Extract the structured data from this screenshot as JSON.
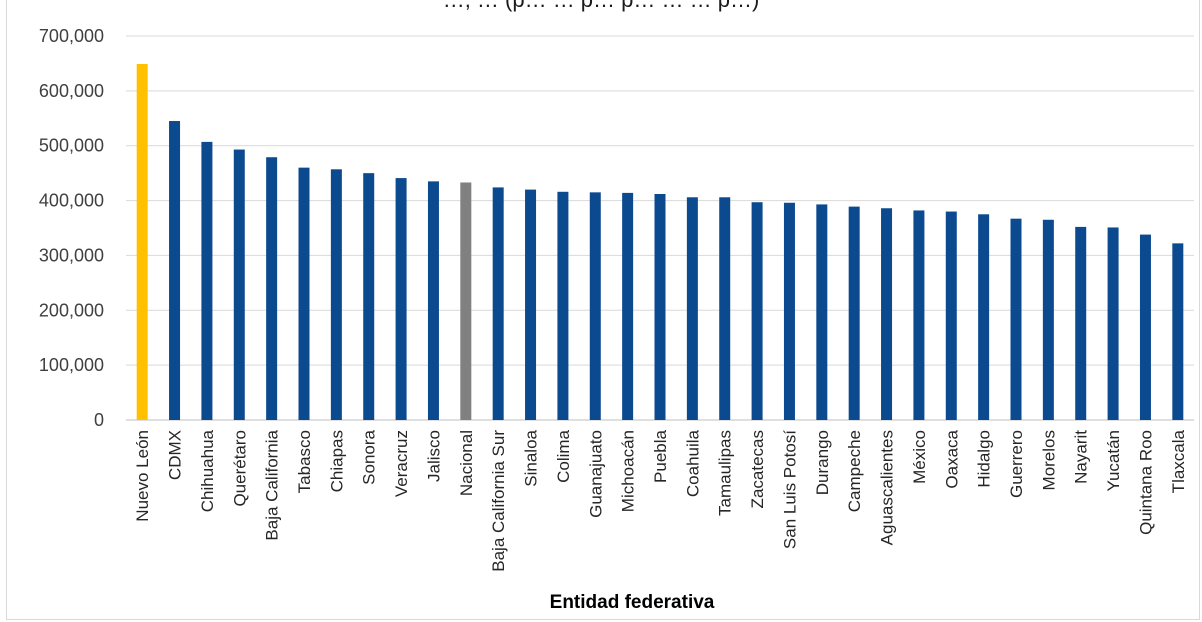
{
  "chart_data": {
    "type": "bar",
    "title": "…, … (p… … p… p… … … p…)",
    "xlabel": "Entidad federativa",
    "ylabel": "",
    "ylim": [
      0,
      700000
    ],
    "yticks": [
      "0",
      "100,000",
      "200,000",
      "300,000",
      "400,000",
      "500,000",
      "600,000",
      "700,000"
    ],
    "grid": true,
    "legend": "none",
    "colors": {
      "default": "#0b4a8f",
      "highlight": "#ffc000",
      "national": "#808080",
      "grid": "#d9d9d9",
      "axis": "#bfbfbf"
    },
    "categories": [
      "Nuevo León",
      "CDMX",
      "Chihuahua",
      "Querétaro",
      "Baja California",
      "Tabasco",
      "Chiapas",
      "Sonora",
      "Veracruz",
      "Jalisco",
      "Nacional",
      "Baja California Sur",
      "Sinaloa",
      "Colima",
      "Guanajuato",
      "Michoacán",
      "Puebla",
      "Coahuila",
      "Tamaulipas",
      "Zacatecas",
      "San Luis Potosí",
      "Durango",
      "Campeche",
      "Aguascalientes",
      "México",
      "Oaxaca",
      "Hidalgo",
      "Guerrero",
      "Morelos",
      "Nayarit",
      "Yucatán",
      "Quintana Roo",
      "Tlaxcala"
    ],
    "values": [
      649000,
      545000,
      507000,
      493000,
      479000,
      460000,
      457000,
      450000,
      441000,
      435000,
      433000,
      424000,
      420000,
      416000,
      415000,
      414000,
      412000,
      406000,
      406000,
      397000,
      396000,
      393000,
      389000,
      386000,
      382000,
      380000,
      375000,
      367000,
      365000,
      352000,
      351000,
      338000,
      322000
    ],
    "bar_colors": [
      "highlight",
      "default",
      "default",
      "default",
      "default",
      "default",
      "default",
      "default",
      "default",
      "default",
      "national",
      "default",
      "default",
      "default",
      "default",
      "default",
      "default",
      "default",
      "default",
      "default",
      "default",
      "default",
      "default",
      "default",
      "default",
      "default",
      "default",
      "default",
      "default",
      "default",
      "default",
      "default",
      "default"
    ]
  }
}
